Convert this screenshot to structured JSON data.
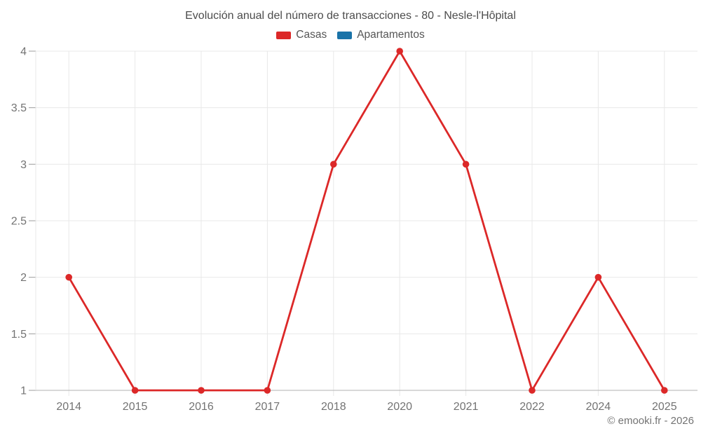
{
  "footer": {
    "copyright": "© emooki.fr - 2026"
  },
  "chart_data": {
    "type": "line",
    "title": "Evolución anual del número de transacciones - 80 - Nesle-l'Hôpital",
    "categories": [
      "2014",
      "2015",
      "2016",
      "2017",
      "2018",
      "2020",
      "2021",
      "2022",
      "2024",
      "2025"
    ],
    "series": [
      {
        "name": "Casas",
        "color": "#dc2828",
        "values": [
          2,
          1,
          1,
          1,
          3,
          4,
          3,
          1,
          2,
          1
        ]
      },
      {
        "name": "Apartamentos",
        "color": "#1a73a8",
        "values": []
      }
    ],
    "xlabel": "",
    "ylabel": "",
    "ylim": [
      1,
      4
    ],
    "yticks": [
      1,
      1.5,
      2,
      2.5,
      3,
      3.5,
      4
    ],
    "grid": true,
    "legend_position": "top"
  }
}
